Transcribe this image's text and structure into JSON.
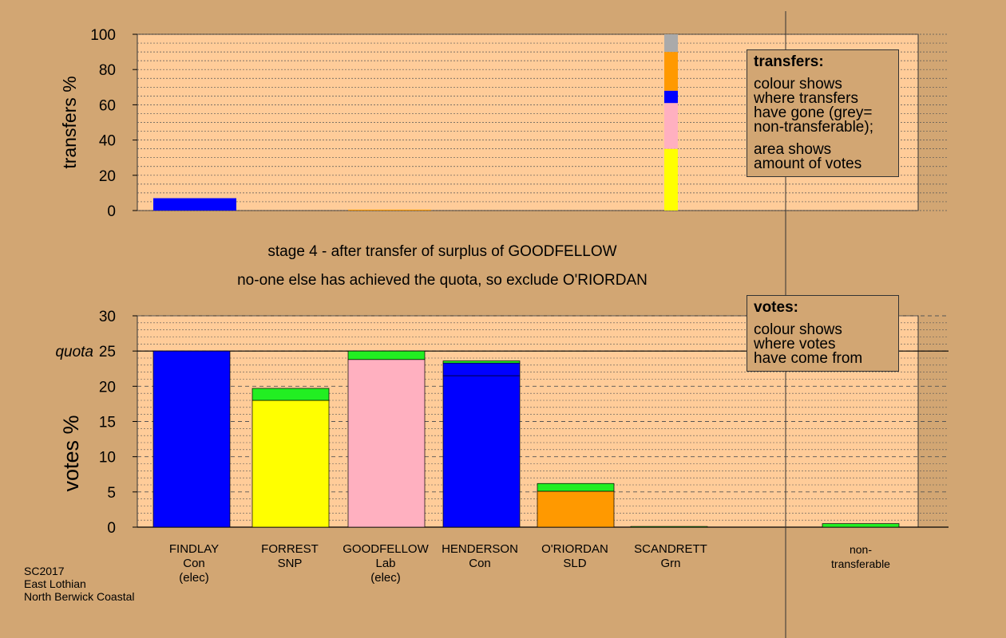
{
  "chart_data": [
    {
      "type": "bar",
      "ylabel": "transfers %",
      "ylim": [
        0,
        100
      ],
      "yticks": [
        0,
        20,
        40,
        60,
        80,
        100
      ],
      "bars": [
        {
          "category": "FINDLAY",
          "segments": [
            {
              "value": 7,
              "color": "#0000ff"
            }
          ]
        },
        {
          "category": "FORREST",
          "segments": []
        },
        {
          "category": "GOODFELLOW",
          "segments": [
            {
              "value": 0.5,
              "color": "#ff9900"
            }
          ]
        },
        {
          "category": "HENDERSON",
          "segments": []
        },
        {
          "category": "O'RIORDAN",
          "segments": []
        },
        {
          "category": "SCANDRETT",
          "segments": [
            {
              "value": 35,
              "color": "#ffff00"
            },
            {
              "value": 26,
              "color": "#ffb0c0"
            },
            {
              "value": 7,
              "color": "#0000ff"
            },
            {
              "value": 22,
              "color": "#ff9900"
            },
            {
              "value": 10,
              "color": "#aaaaaa"
            }
          ]
        }
      ]
    },
    {
      "type": "bar",
      "ylabel": "votes %",
      "ylim": [
        0,
        30
      ],
      "yticks": [
        0,
        5,
        10,
        15,
        20,
        25,
        30
      ],
      "quota": 25,
      "quota_label": "quota",
      "categories": [
        "FINDLAY",
        "FORREST",
        "GOODFELLOW",
        "HENDERSON",
        "O'RIORDAN",
        "SCANDRETT",
        "non-transferable"
      ],
      "bars": [
        {
          "category": "FINDLAY",
          "segments": [
            {
              "value": 25,
              "color": "#0000ff"
            }
          ]
        },
        {
          "category": "FORREST",
          "segments": [
            {
              "value": 18,
              "color": "#ffff00"
            },
            {
              "value": 1.7,
              "color": "#22ee22"
            }
          ]
        },
        {
          "category": "GOODFELLOW",
          "segments": [
            {
              "value": 23.8,
              "color": "#ffb0c0"
            },
            {
              "value": 1.2,
              "color": "#22ee22"
            }
          ]
        },
        {
          "category": "HENDERSON",
          "segments": [
            {
              "value": 21.5,
              "color": "#0000ff"
            },
            {
              "value": 1.8,
              "color": "#0000ff"
            },
            {
              "value": 0.3,
              "color": "#22ee22"
            }
          ]
        },
        {
          "category": "O'RIORDAN",
          "segments": [
            {
              "value": 5.1,
              "color": "#ff9900"
            },
            {
              "value": 1.1,
              "color": "#22ee22"
            }
          ]
        },
        {
          "category": "SCANDRETT",
          "segments": [
            {
              "value": 0.1,
              "color": "#22ee22"
            }
          ]
        },
        {
          "category": "non-transferable",
          "segments": [
            {
              "value": 0.5,
              "color": "#22ee22"
            }
          ]
        }
      ]
    }
  ],
  "stage_title": "stage 4 - after transfer of surplus of GOODFELLOW",
  "stage_subtitle": "no-one else has achieved the quota, so exclude O'RIORDAN",
  "candidate_labels": [
    {
      "name": "FINDLAY",
      "party": "Con",
      "status": "(elec)"
    },
    {
      "name": "FORREST",
      "party": "SNP",
      "status": ""
    },
    {
      "name": "GOODFELLOW",
      "party": "Lab",
      "status": "(elec)"
    },
    {
      "name": "HENDERSON",
      "party": "Con",
      "status": ""
    },
    {
      "name": "O'RIORDAN",
      "party": "SLD",
      "status": ""
    },
    {
      "name": "SCANDRETT",
      "party": "Grn",
      "status": ""
    },
    {
      "name": "non-",
      "party": "transferable",
      "status": ""
    }
  ],
  "legend_transfers": {
    "heading": "transfers:",
    "lines1": [
      "colour shows",
      "where transfers",
      "have gone (grey=",
      "non-transferable);"
    ],
    "lines2": [
      "area shows",
      "amount of votes"
    ]
  },
  "legend_votes": {
    "heading": "votes:",
    "lines": [
      "colour shows",
      "where votes",
      "have come from"
    ]
  },
  "footer": {
    "line1": "SC2017",
    "line2": "East Lothian",
    "line3": "North Berwick Coastal"
  },
  "colors": {
    "background": "#d2a673",
    "plot_bg": "#ffcc99"
  }
}
